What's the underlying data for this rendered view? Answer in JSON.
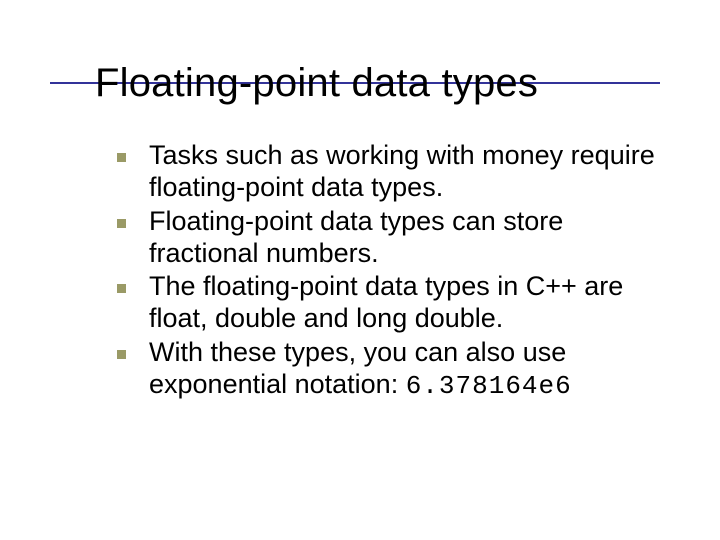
{
  "slide": {
    "title": "Floating-point data types",
    "title_color": "#000000",
    "title_fontsize": 40,
    "underline_color": "#333399",
    "bullet_color": "#9a9a66",
    "bullet_size": 9,
    "body_fontsize": 27,
    "body_color": "#000000",
    "background_color": "#ffffff",
    "items": [
      {
        "text": "Tasks such as working with money require floating-point data types."
      },
      {
        "text": "Floating-point data types can store fractional numbers."
      },
      {
        "text": "The floating-point data types in C++ are float, double and long double."
      },
      {
        "text": "With these types, you can also use exponential notation: ",
        "code": "6.378164e6"
      }
    ]
  }
}
